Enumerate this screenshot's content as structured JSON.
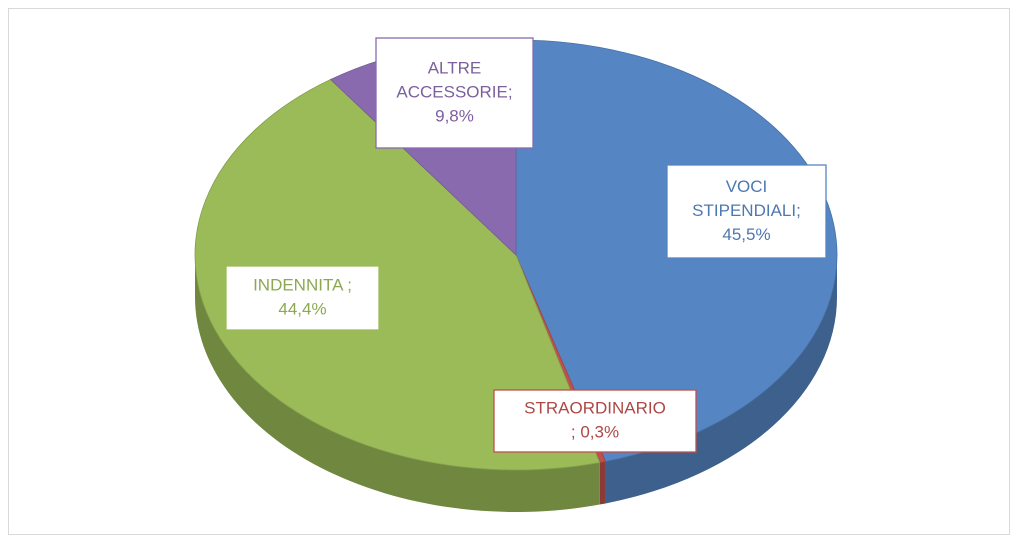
{
  "chart_data": {
    "type": "pie",
    "start_angle": 0,
    "direction": "clockwise",
    "three_d": true,
    "values": [
      45.5,
      0.3,
      44.4,
      9.8
    ],
    "value_labels": [
      [
        "VOCI",
        "STIPENDIALI;",
        "45,5%"
      ],
      [
        "STRAORDINARIO",
        "; 0,3%"
      ],
      [
        "INDENNITA ;",
        "44,4%"
      ],
      [
        "ALTRE",
        "ACCESSORIE;",
        "9,8%"
      ]
    ],
    "colors": [
      "#5585c3",
      "#c0504d",
      "#9bbb59",
      "#8a6aae"
    ]
  }
}
